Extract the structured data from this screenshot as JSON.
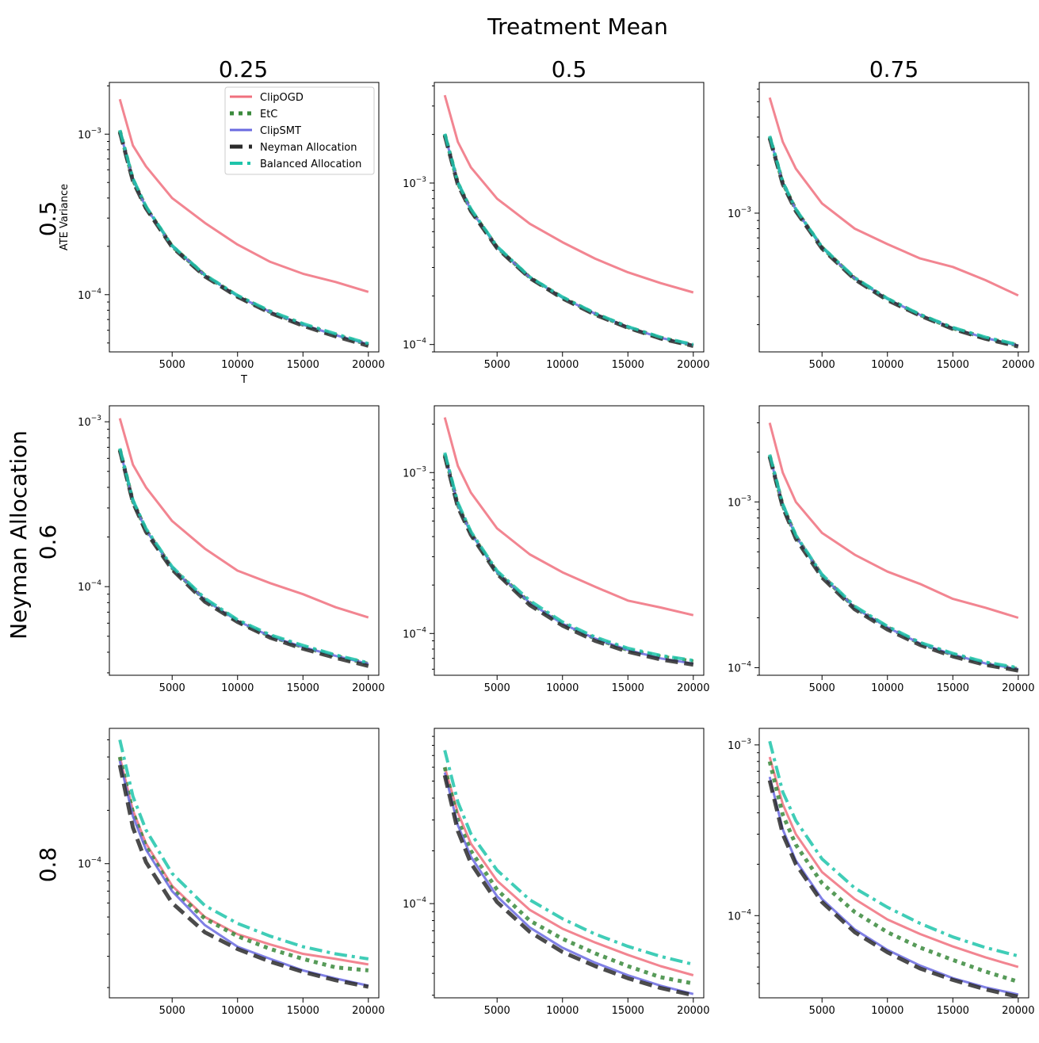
{
  "figure": {
    "title": "Treatment Mean",
    "row_group_label": "Neyman Allocation",
    "col_labels": [
      "0.25",
      "0.5",
      "0.75"
    ],
    "row_labels": [
      "0.5",
      "0.6",
      "0.8"
    ]
  },
  "chart_data": {
    "type": "line",
    "grid": false,
    "legend_position": "upper-right of top-left panel",
    "xlabel": "T",
    "ylabel": "ATE Variance",
    "y_scale": "log",
    "x_ticks": [
      5000,
      10000,
      15000,
      20000
    ],
    "x_range": [
      1000,
      20000
    ],
    "series_styles": [
      {
        "name": "ClipOGD",
        "color": "#f0707e",
        "dash": "solid",
        "width": 3
      },
      {
        "name": "EtC",
        "color": "#3a8a3c",
        "dash": "dotted",
        "width": 5
      },
      {
        "name": "ClipSMT",
        "color": "#6a6ae0",
        "dash": "solid",
        "width": 3
      },
      {
        "name": "Neyman Allocation",
        "color": "#2b2b2b",
        "dash": "dashed",
        "width": 5
      },
      {
        "name": "Balanced Allocation",
        "color": "#1ec4aa",
        "dash": "dashdot",
        "width": 4
      }
    ],
    "panels": [
      {
        "row": 0,
        "col": 0,
        "ylim": [
          4.4e-05,
          0.0021
        ],
        "y_ticks": [
          "10^{-3}",
          "10^{-4}"
        ],
        "show_axis_labels": true,
        "x": [
          1000,
          2000,
          3000,
          5000,
          7500,
          10000,
          12500,
          15000,
          17500,
          20000
        ],
        "series": [
          {
            "name": "ClipOGD",
            "values": [
              0.00165,
              0.00085,
              0.00063,
              0.0004,
              0.00028,
              0.000205,
              0.00016,
              0.000135,
              0.00012,
              0.000104
            ]
          },
          {
            "name": "EtC",
            "values": [
              0.00105,
              0.00052,
              0.00035,
              0.0002,
              0.000132,
              9.8e-05,
              7.8e-05,
              6.5e-05,
              5.6e-05,
              4.9e-05
            ]
          },
          {
            "name": "ClipSMT",
            "values": [
              0.00105,
              0.00052,
              0.00035,
              0.0002,
              0.000132,
              9.8e-05,
              7.8e-05,
              6.5e-05,
              5.6e-05,
              4.9e-05
            ]
          },
          {
            "name": "Neyman Allocation",
            "values": [
              0.00103,
              0.00051,
              0.000345,
              0.000198,
              0.00013,
              9.7e-05,
              7.7e-05,
              6.4e-05,
              5.5e-05,
              4.8e-05
            ]
          },
          {
            "name": "Balanced Allocation",
            "values": [
              0.00106,
              0.00053,
              0.000355,
              0.000202,
              0.000133,
              9.9e-05,
              7.9e-05,
              6.6e-05,
              5.7e-05,
              4.95e-05
            ]
          }
        ]
      },
      {
        "row": 0,
        "col": 1,
        "ylim": [
          9e-05,
          0.0042
        ],
        "y_ticks": [
          "10^{-3}",
          "10^{-4}"
        ],
        "show_axis_labels": false,
        "x": [
          1000,
          2000,
          3000,
          5000,
          7500,
          10000,
          12500,
          15000,
          17500,
          20000
        ],
        "series": [
          {
            "name": "ClipOGD",
            "values": [
              0.0035,
              0.0018,
              0.00125,
              0.0008,
              0.00056,
              0.00043,
              0.00034,
              0.00028,
              0.00024,
              0.00021
            ]
          },
          {
            "name": "EtC",
            "values": [
              0.002,
              0.001,
              0.00068,
              0.0004,
              0.00026,
              0.000195,
              0.000155,
              0.000128,
              0.00011,
              9.9e-05
            ]
          },
          {
            "name": "ClipSMT",
            "values": [
              0.002,
              0.001,
              0.00068,
              0.0004,
              0.00026,
              0.000195,
              0.000155,
              0.000128,
              0.00011,
              9.9e-05
            ]
          },
          {
            "name": "Neyman Allocation",
            "values": [
              0.00197,
              0.00098,
              0.00067,
              0.000395,
              0.000258,
              0.000193,
              0.000153,
              0.000127,
              0.000109,
              9.8e-05
            ]
          },
          {
            "name": "Balanced Allocation",
            "values": [
              0.00202,
              0.00101,
              0.00069,
              0.000405,
              0.000262,
              0.000197,
              0.000156,
              0.000129,
              0.000111,
              0.0001
            ]
          }
        ]
      },
      {
        "row": 0,
        "col": 2,
        "ylim": [
          0.000135,
          0.0066
        ],
        "y_ticks": [
          "10^{-3}"
        ],
        "show_axis_labels": false,
        "x": [
          1000,
          2000,
          3000,
          5000,
          7500,
          10000,
          12500,
          15000,
          17500,
          20000
        ],
        "series": [
          {
            "name": "ClipOGD",
            "values": [
              0.0053,
              0.0028,
              0.0019,
              0.00115,
              0.0008,
              0.00064,
              0.00052,
              0.00046,
              0.00038,
              0.000305
            ]
          },
          {
            "name": "EtC",
            "values": [
              0.003,
              0.00155,
              0.00105,
              0.00061,
              0.00039,
              0.00029,
              0.00023,
              0.00019,
              0.000165,
              0.000148
            ]
          },
          {
            "name": "ClipSMT",
            "values": [
              0.003,
              0.00155,
              0.00105,
              0.00061,
              0.00039,
              0.00029,
              0.00023,
              0.00019,
              0.000165,
              0.000148
            ]
          },
          {
            "name": "Neyman Allocation",
            "values": [
              0.00295,
              0.00152,
              0.00103,
              0.0006,
              0.000385,
              0.000285,
              0.000228,
              0.000188,
              0.000163,
              0.000146
            ]
          },
          {
            "name": "Balanced Allocation",
            "values": [
              0.00305,
              0.00157,
              0.00106,
              0.000615,
              0.000395,
              0.000292,
              0.000232,
              0.000192,
              0.000167,
              0.00015
            ]
          }
        ]
      },
      {
        "row": 1,
        "col": 0,
        "ylim": [
          2.9e-05,
          0.00125
        ],
        "y_ticks": [
          "10^{-3}",
          "10^{-4}"
        ],
        "show_axis_labels": false,
        "x": [
          1000,
          2000,
          3000,
          5000,
          7500,
          10000,
          12500,
          15000,
          17500,
          20000
        ],
        "series": [
          {
            "name": "ClipOGD",
            "values": [
              0.00105,
              0.00055,
              0.0004,
              0.00025,
              0.00017,
              0.000125,
              0.000105,
              9e-05,
              7.5e-05,
              6.5e-05
            ]
          },
          {
            "name": "EtC",
            "values": [
              0.00068,
              0.00033,
              0.00022,
              0.00013,
              8.3e-05,
              6.2e-05,
              5e-05,
              4.3e-05,
              3.8e-05,
              3.4e-05
            ]
          },
          {
            "name": "ClipSMT",
            "values": [
              0.00068,
              0.00033,
              0.00022,
              0.00013,
              8.3e-05,
              6.2e-05,
              5e-05,
              4.3e-05,
              3.8e-05,
              3.4e-05
            ]
          },
          {
            "name": "Neyman Allocation",
            "values": [
              0.00067,
              0.000325,
              0.000215,
              0.000127,
              8.1e-05,
              6.1e-05,
              4.9e-05,
              4.2e-05,
              3.7e-05,
              3.3e-05
            ]
          },
          {
            "name": "Balanced Allocation",
            "values": [
              0.00069,
              0.000335,
              0.000225,
              0.000132,
              8.5e-05,
              6.3e-05,
              5.1e-05,
              4.4e-05,
              3.85e-05,
              3.45e-05
            ]
          }
        ]
      },
      {
        "row": 1,
        "col": 1,
        "ylim": [
          5.5e-05,
          0.0026
        ],
        "y_ticks": [
          "10^{-3}",
          "10^{-4}"
        ],
        "show_axis_labels": false,
        "x": [
          1000,
          2000,
          3000,
          5000,
          7500,
          10000,
          12500,
          15000,
          17500,
          20000
        ],
        "series": [
          {
            "name": "ClipOGD",
            "values": [
              0.0022,
              0.0011,
              0.00075,
              0.00045,
              0.00031,
              0.00024,
              0.000195,
              0.00016,
              0.000145,
              0.00013
            ]
          },
          {
            "name": "EtC",
            "values": [
              0.0013,
              0.00063,
              0.00042,
              0.00024,
              0.000155,
              0.000115,
              9.3e-05,
              7.9e-05,
              7.2e-05,
              6.7e-05
            ]
          },
          {
            "name": "ClipSMT",
            "values": [
              0.0013,
              0.00063,
              0.00042,
              0.00024,
              0.000155,
              0.000115,
              9.3e-05,
              7.9e-05,
              7e-05,
              6.5e-05
            ]
          },
          {
            "name": "Neyman Allocation",
            "values": [
              0.00127,
              0.00061,
              0.00041,
              0.000235,
              0.00015,
              0.000112,
              9e-05,
              7.7e-05,
              6.9e-05,
              6.4e-05
            ]
          },
          {
            "name": "Balanced Allocation",
            "values": [
              0.00133,
              0.00065,
              0.00043,
              0.000245,
              0.00016,
              0.000118,
              9.5e-05,
              8.1e-05,
              7.3e-05,
              6.8e-05
            ]
          }
        ]
      },
      {
        "row": 1,
        "col": 2,
        "ylim": [
          9e-05,
          0.0038
        ],
        "y_ticks": [
          "10^{-3}",
          "10^{-4}"
        ],
        "show_axis_labels": false,
        "x": [
          1000,
          2000,
          3000,
          5000,
          7500,
          10000,
          12500,
          15000,
          17500,
          20000
        ],
        "series": [
          {
            "name": "ClipOGD",
            "values": [
              0.003,
              0.0015,
              0.001,
              0.00065,
              0.00048,
              0.00038,
              0.00032,
              0.00026,
              0.00023,
              0.0002
            ]
          },
          {
            "name": "EtC",
            "values": [
              0.0019,
              0.00095,
              0.00062,
              0.00036,
              0.00023,
              0.000175,
              0.00014,
              0.00012,
              0.000106,
              9.8e-05
            ]
          },
          {
            "name": "ClipSMT",
            "values": [
              0.0019,
              0.00095,
              0.00062,
              0.00036,
              0.00023,
              0.000175,
              0.00014,
              0.00012,
              0.000106,
              9.8e-05
            ]
          },
          {
            "name": "Neyman Allocation",
            "values": [
              0.00187,
              0.00093,
              0.0006,
              0.00035,
              0.000225,
              0.00017,
              0.000137,
              0.000117,
              0.000104,
              9.6e-05
            ]
          },
          {
            "name": "Balanced Allocation",
            "values": [
              0.00193,
              0.00097,
              0.00063,
              0.000365,
              0.000235,
              0.000178,
              0.000142,
              0.000122,
              0.000108,
              0.0001
            ]
          }
        ]
      },
      {
        "row": 2,
        "col": 0,
        "ylim": [
          1.75e-05,
          0.00058
        ],
        "y_ticks": [
          "10^{-4}"
        ],
        "show_axis_labels": false,
        "x": [
          1000,
          2000,
          3000,
          5000,
          7500,
          10000,
          12500,
          15000,
          17500,
          20000
        ],
        "series": [
          {
            "name": "ClipOGD",
            "values": [
              0.0004,
              0.0002,
              0.00013,
              7.5e-05,
              5e-05,
              4e-05,
              3.5e-05,
              3.1e-05,
              2.9e-05,
              2.7e-05
            ]
          },
          {
            "name": "EtC",
            "values": [
              0.0004,
              0.000195,
              0.000125,
              7.2e-05,
              4.9e-05,
              3.9e-05,
              3.3e-05,
              2.9e-05,
              2.6e-05,
              2.5e-05
            ]
          },
          {
            "name": "ClipSMT",
            "values": [
              0.00038,
              0.000185,
              0.00012,
              7e-05,
              4.5e-05,
              3.4e-05,
              2.9e-05,
              2.5e-05,
              2.25e-05,
              2.05e-05
            ]
          },
          {
            "name": "Neyman Allocation",
            "values": [
              0.00036,
              0.00016,
              0.000102,
              6e-05,
              4.1e-05,
              3.3e-05,
              2.8e-05,
              2.45e-05,
              2.2e-05,
              2.02e-05
            ]
          },
          {
            "name": "Balanced Allocation",
            "values": [
              0.0005,
              0.00024,
              0.000155,
              8.8e-05,
              5.8e-05,
              4.6e-05,
              3.9e-05,
              3.4e-05,
              3.1e-05,
              2.9e-05
            ]
          }
        ]
      },
      {
        "row": 2,
        "col": 1,
        "ylim": [
          2.9e-05,
          0.001
        ],
        "y_ticks": [
          "10^{-4}"
        ],
        "show_axis_labels": false,
        "x": [
          1000,
          2000,
          3000,
          5000,
          7500,
          10000,
          12500,
          15000,
          17500,
          20000
        ],
        "series": [
          {
            "name": "ClipOGD",
            "values": [
              0.0006,
              0.00033,
              0.00022,
              0.000135,
              9.2e-05,
              7.2e-05,
              6e-05,
              5.1e-05,
              4.4e-05,
              3.9e-05
            ]
          },
          {
            "name": "EtC",
            "values": [
              0.0006,
              0.0003,
              0.0002,
              0.00012,
              8e-05,
              6.3e-05,
              5.2e-05,
              4.4e-05,
              3.8e-05,
              3.5e-05
            ]
          },
          {
            "name": "ClipSMT",
            "values": [
              0.00056,
              0.00028,
              0.000185,
              0.00011,
              7.3e-05,
              5.6e-05,
              4.6e-05,
              3.9e-05,
              3.4e-05,
              3.05e-05
            ]
          },
          {
            "name": "Neyman Allocation",
            "values": [
              0.00054,
              0.00026,
              0.00017,
              0.000102,
              6.9e-05,
              5.3e-05,
              4.4e-05,
              3.75e-05,
              3.3e-05,
              3e-05
            ]
          },
          {
            "name": "Balanced Allocation",
            "values": [
              0.00075,
              0.00038,
              0.00025,
              0.000155,
              0.000105,
              8.2e-05,
              6.7e-05,
              5.7e-05,
              5e-05,
              4.5e-05
            ]
          }
        ]
      },
      {
        "row": 2,
        "col": 2,
        "ylim": [
          3.3e-05,
          0.00125
        ],
        "y_ticks": [
          "10^{-3}",
          "10^{-4}"
        ],
        "show_axis_labels": false,
        "x": [
          1000,
          2000,
          3000,
          5000,
          7500,
          10000,
          12500,
          15000,
          17500,
          20000
        ],
        "series": [
          {
            "name": "ClipOGD",
            "values": [
              0.00085,
              0.00045,
              0.0003,
              0.00018,
              0.000125,
              9.5e-05,
              7.8e-05,
              6.6e-05,
              5.7e-05,
              5e-05
            ]
          },
          {
            "name": "EtC",
            "values": [
              0.0008,
              0.00039,
              0.00026,
              0.000155,
              0.000105,
              8e-05,
              6.5e-05,
              5.5e-05,
              4.7e-05,
              4.1e-05
            ]
          },
          {
            "name": "ClipSMT",
            "values": [
              0.00065,
              0.00032,
              0.00021,
              0.000125,
              8.3e-05,
              6.3e-05,
              5.1e-05,
              4.3e-05,
              3.8e-05,
              3.45e-05
            ]
          },
          {
            "name": "Neyman Allocation",
            "values": [
              0.00062,
              0.0003,
              0.0002,
              0.00012,
              8e-05,
              6.1e-05,
              4.9e-05,
              4.2e-05,
              3.7e-05,
              3.35e-05
            ]
          },
          {
            "name": "Balanced Allocation",
            "values": [
              0.00105,
              0.00053,
              0.00036,
              0.000215,
              0.000145,
              0.000112,
              9e-05,
              7.5e-05,
              6.5e-05,
              5.8e-05
            ]
          }
        ]
      }
    ]
  }
}
